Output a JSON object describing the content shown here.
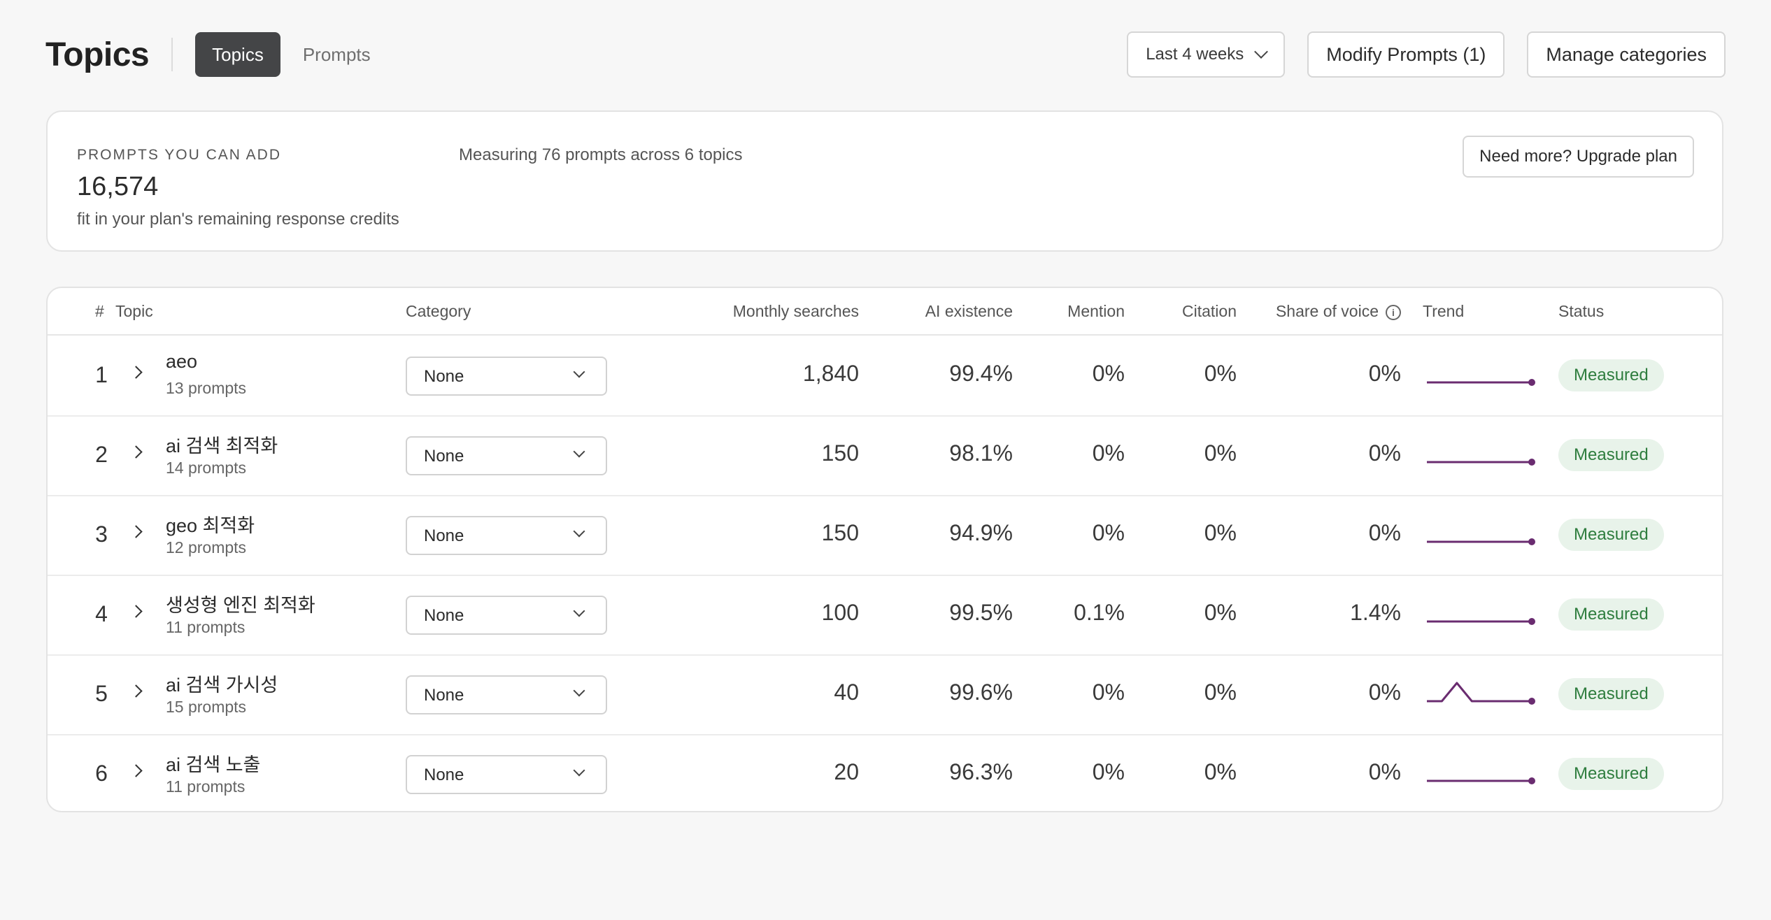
{
  "header": {
    "title": "Topics",
    "tabs": [
      {
        "label": "Topics",
        "active": true
      },
      {
        "label": "Prompts",
        "active": false
      }
    ],
    "range_label": "Last 4 weeks",
    "modify_label": "Modify Prompts (1)",
    "manage_label": "Manage categories"
  },
  "summary": {
    "label": "PROMPTS YOU CAN ADD",
    "value": "16,574",
    "note": "fit in your plan's remaining response credits",
    "measuring": "Measuring 76 prompts across 6 topics",
    "upgrade_label": "Need more? Upgrade plan"
  },
  "table": {
    "columns": {
      "num": "#",
      "topic": "Topic",
      "category": "Category",
      "monthly": "Monthly searches",
      "ai": "AI existence",
      "mention": "Mention",
      "citation": "Citation",
      "sov": "Share of voice",
      "trend": "Trend",
      "status": "Status"
    },
    "rows": [
      {
        "num": "1",
        "topic": "aeo",
        "prompts": "13 prompts",
        "category": "None",
        "monthly": "1,840",
        "ai": "99.4%",
        "mention": "0%",
        "citation": "0%",
        "sov": "0%",
        "trend": [
          0,
          0,
          0,
          0,
          0,
          0,
          0,
          0
        ],
        "status": "Measured"
      },
      {
        "num": "2",
        "topic": "ai 검색 최적화",
        "prompts": "14 prompts",
        "category": "None",
        "monthly": "150",
        "ai": "98.1%",
        "mention": "0%",
        "citation": "0%",
        "sov": "0%",
        "trend": [
          0,
          0,
          0,
          0,
          0,
          0,
          0,
          0
        ],
        "status": "Measured"
      },
      {
        "num": "3",
        "topic": "geo 최적화",
        "prompts": "12 prompts",
        "category": "None",
        "monthly": "150",
        "ai": "94.9%",
        "mention": "0%",
        "citation": "0%",
        "sov": "0%",
        "trend": [
          0,
          0,
          0,
          0,
          0,
          0,
          0,
          0
        ],
        "status": "Measured"
      },
      {
        "num": "4",
        "topic": "생성형 엔진 최적화",
        "prompts": "11 prompts",
        "category": "None",
        "monthly": "100",
        "ai": "99.5%",
        "mention": "0.1%",
        "citation": "0%",
        "sov": "1.4%",
        "trend": [
          0,
          0,
          0,
          0,
          0,
          0,
          0,
          0
        ],
        "status": "Measured"
      },
      {
        "num": "5",
        "topic": "ai 검색 가시성",
        "prompts": "15 prompts",
        "category": "None",
        "monthly": "40",
        "ai": "99.6%",
        "mention": "0%",
        "citation": "0%",
        "sov": "0%",
        "trend": [
          0,
          0,
          1,
          0,
          0,
          0,
          0,
          0
        ],
        "status": "Measured"
      },
      {
        "num": "6",
        "topic": "ai 검색 노출",
        "prompts": "11 prompts",
        "category": "None",
        "monthly": "20",
        "ai": "96.3%",
        "mention": "0%",
        "citation": "0%",
        "sov": "0%",
        "trend": [
          0,
          0,
          0,
          0,
          0,
          0,
          0,
          0
        ],
        "status": "Measured"
      }
    ]
  },
  "colors": {
    "tab_active_bg": "#444547",
    "trend_line": "#6a2c70",
    "badge_bg": "#e8f3ea",
    "badge_text": "#2e7d3e"
  },
  "icons": {
    "range_chevron": "chevron-down-icon",
    "row_expand": "chevron-right-icon",
    "sov_info": "info-icon"
  }
}
